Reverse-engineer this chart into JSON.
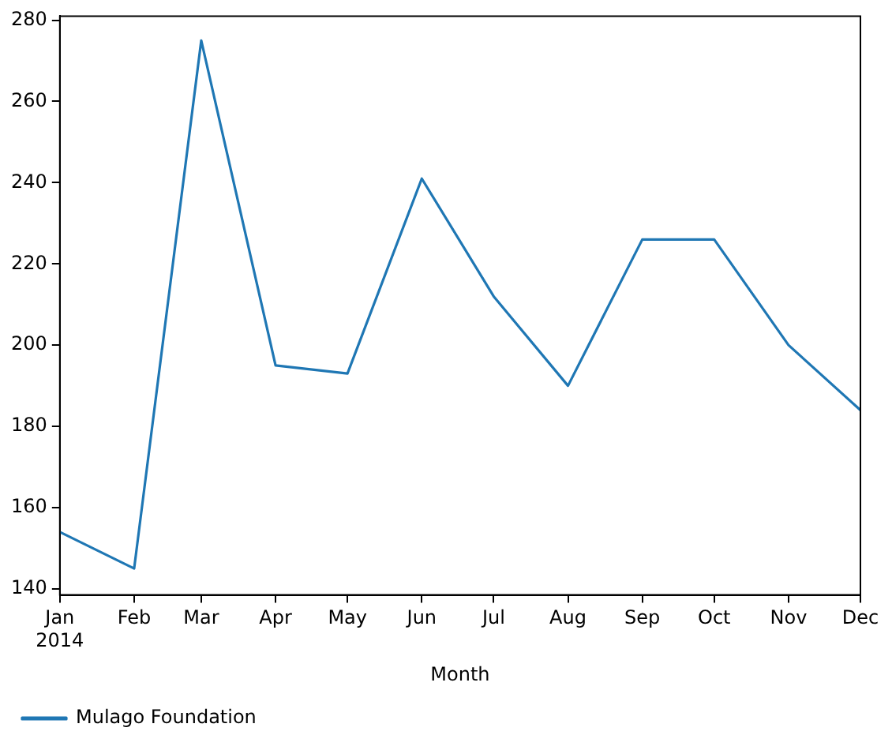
{
  "chart_data": {
    "type": "line",
    "xlabel": "Month",
    "x": [
      "2014-01",
      "2014-02",
      "2014-03",
      "2014-04",
      "2014-05",
      "2014-06",
      "2014-07",
      "2014-08",
      "2014-09",
      "2014-10",
      "2014-11",
      "2014-12"
    ],
    "series": [
      {
        "name": "Mulago Foundation",
        "color": "#1f77b4",
        "values": [
          154,
          145,
          275,
          195,
          193,
          241,
          212,
          190,
          226,
          226,
          200,
          184
        ]
      }
    ],
    "xlim": [
      "2014-01",
      "2014-12"
    ],
    "xticks": [
      {
        "value": "2014-01",
        "label": "Jan\n2014"
      },
      {
        "value": "2014-02",
        "label": "Feb"
      },
      {
        "value": "2014-03",
        "label": "Mar"
      },
      {
        "value": "2014-04",
        "label": "Apr"
      },
      {
        "value": "2014-05",
        "label": "May"
      },
      {
        "value": "2014-06",
        "label": "Jun"
      },
      {
        "value": "2014-07",
        "label": "Jul"
      },
      {
        "value": "2014-08",
        "label": "Aug"
      },
      {
        "value": "2014-09",
        "label": "Sep"
      },
      {
        "value": "2014-10",
        "label": "Oct"
      },
      {
        "value": "2014-11",
        "label": "Nov"
      },
      {
        "value": "2014-12",
        "label": "Dec"
      }
    ],
    "ylim": [
      138.5,
      281
    ],
    "yticks": [
      140,
      160,
      180,
      200,
      220,
      240,
      260,
      280
    ],
    "grid": false,
    "legend": "bottom left",
    "marker": "none",
    "line_style": "solid"
  }
}
